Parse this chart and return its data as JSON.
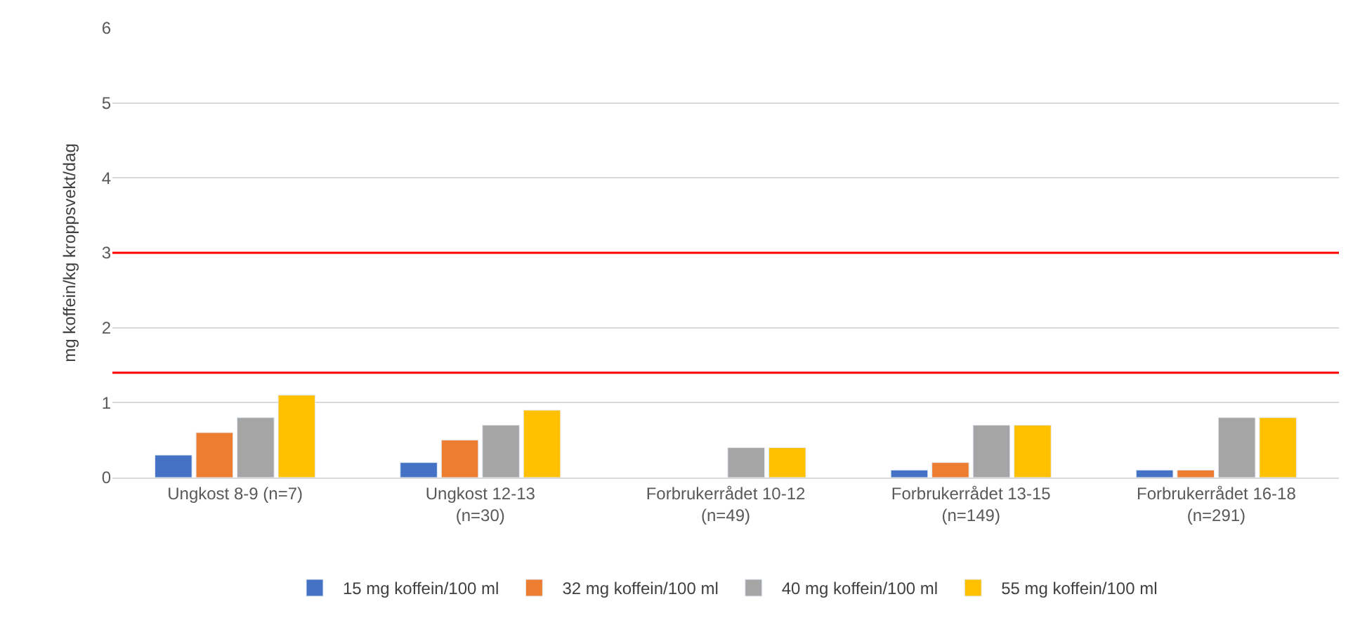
{
  "chart_data": {
    "type": "bar",
    "ylabel": "mg koffein/kg kroppsvekt/dag",
    "categories": [
      "Ungkost 8-9 (n=7)",
      "Ungkost 12-13\n(n=30)",
      "Forbrukerrådet 10-12\n(n=49)",
      "Forbrukerrådet 13-15\n(n=149)",
      "Forbrukerrådet 16-18\n(n=291)"
    ],
    "series": [
      {
        "name": "15 mg koffein/100 ml",
        "color": "#4472c4",
        "values": [
          0.3,
          0.2,
          null,
          0.1,
          0.1
        ]
      },
      {
        "name": "32 mg koffein/100 ml",
        "color": "#ed7d31",
        "values": [
          0.6,
          0.5,
          null,
          0.2,
          0.1
        ]
      },
      {
        "name": "40 mg koffein/100 ml",
        "color": "#a5a5a5",
        "values": [
          0.8,
          0.7,
          0.4,
          0.7,
          0.8
        ]
      },
      {
        "name": "55 mg koffein/100 ml",
        "color": "#ffc000",
        "values": [
          1.1,
          0.9,
          0.4,
          0.7,
          0.8
        ]
      }
    ],
    "ylim": [
      0,
      6
    ],
    "yticks": [
      0,
      1,
      2,
      3,
      4,
      5,
      6
    ],
    "grid": "y",
    "legend": "bottom",
    "ref_lines": [
      {
        "axis": "y",
        "value": 3.0,
        "color": "#ff0000"
      },
      {
        "axis": "y",
        "value": 1.4,
        "color": "#ff0000"
      }
    ]
  }
}
